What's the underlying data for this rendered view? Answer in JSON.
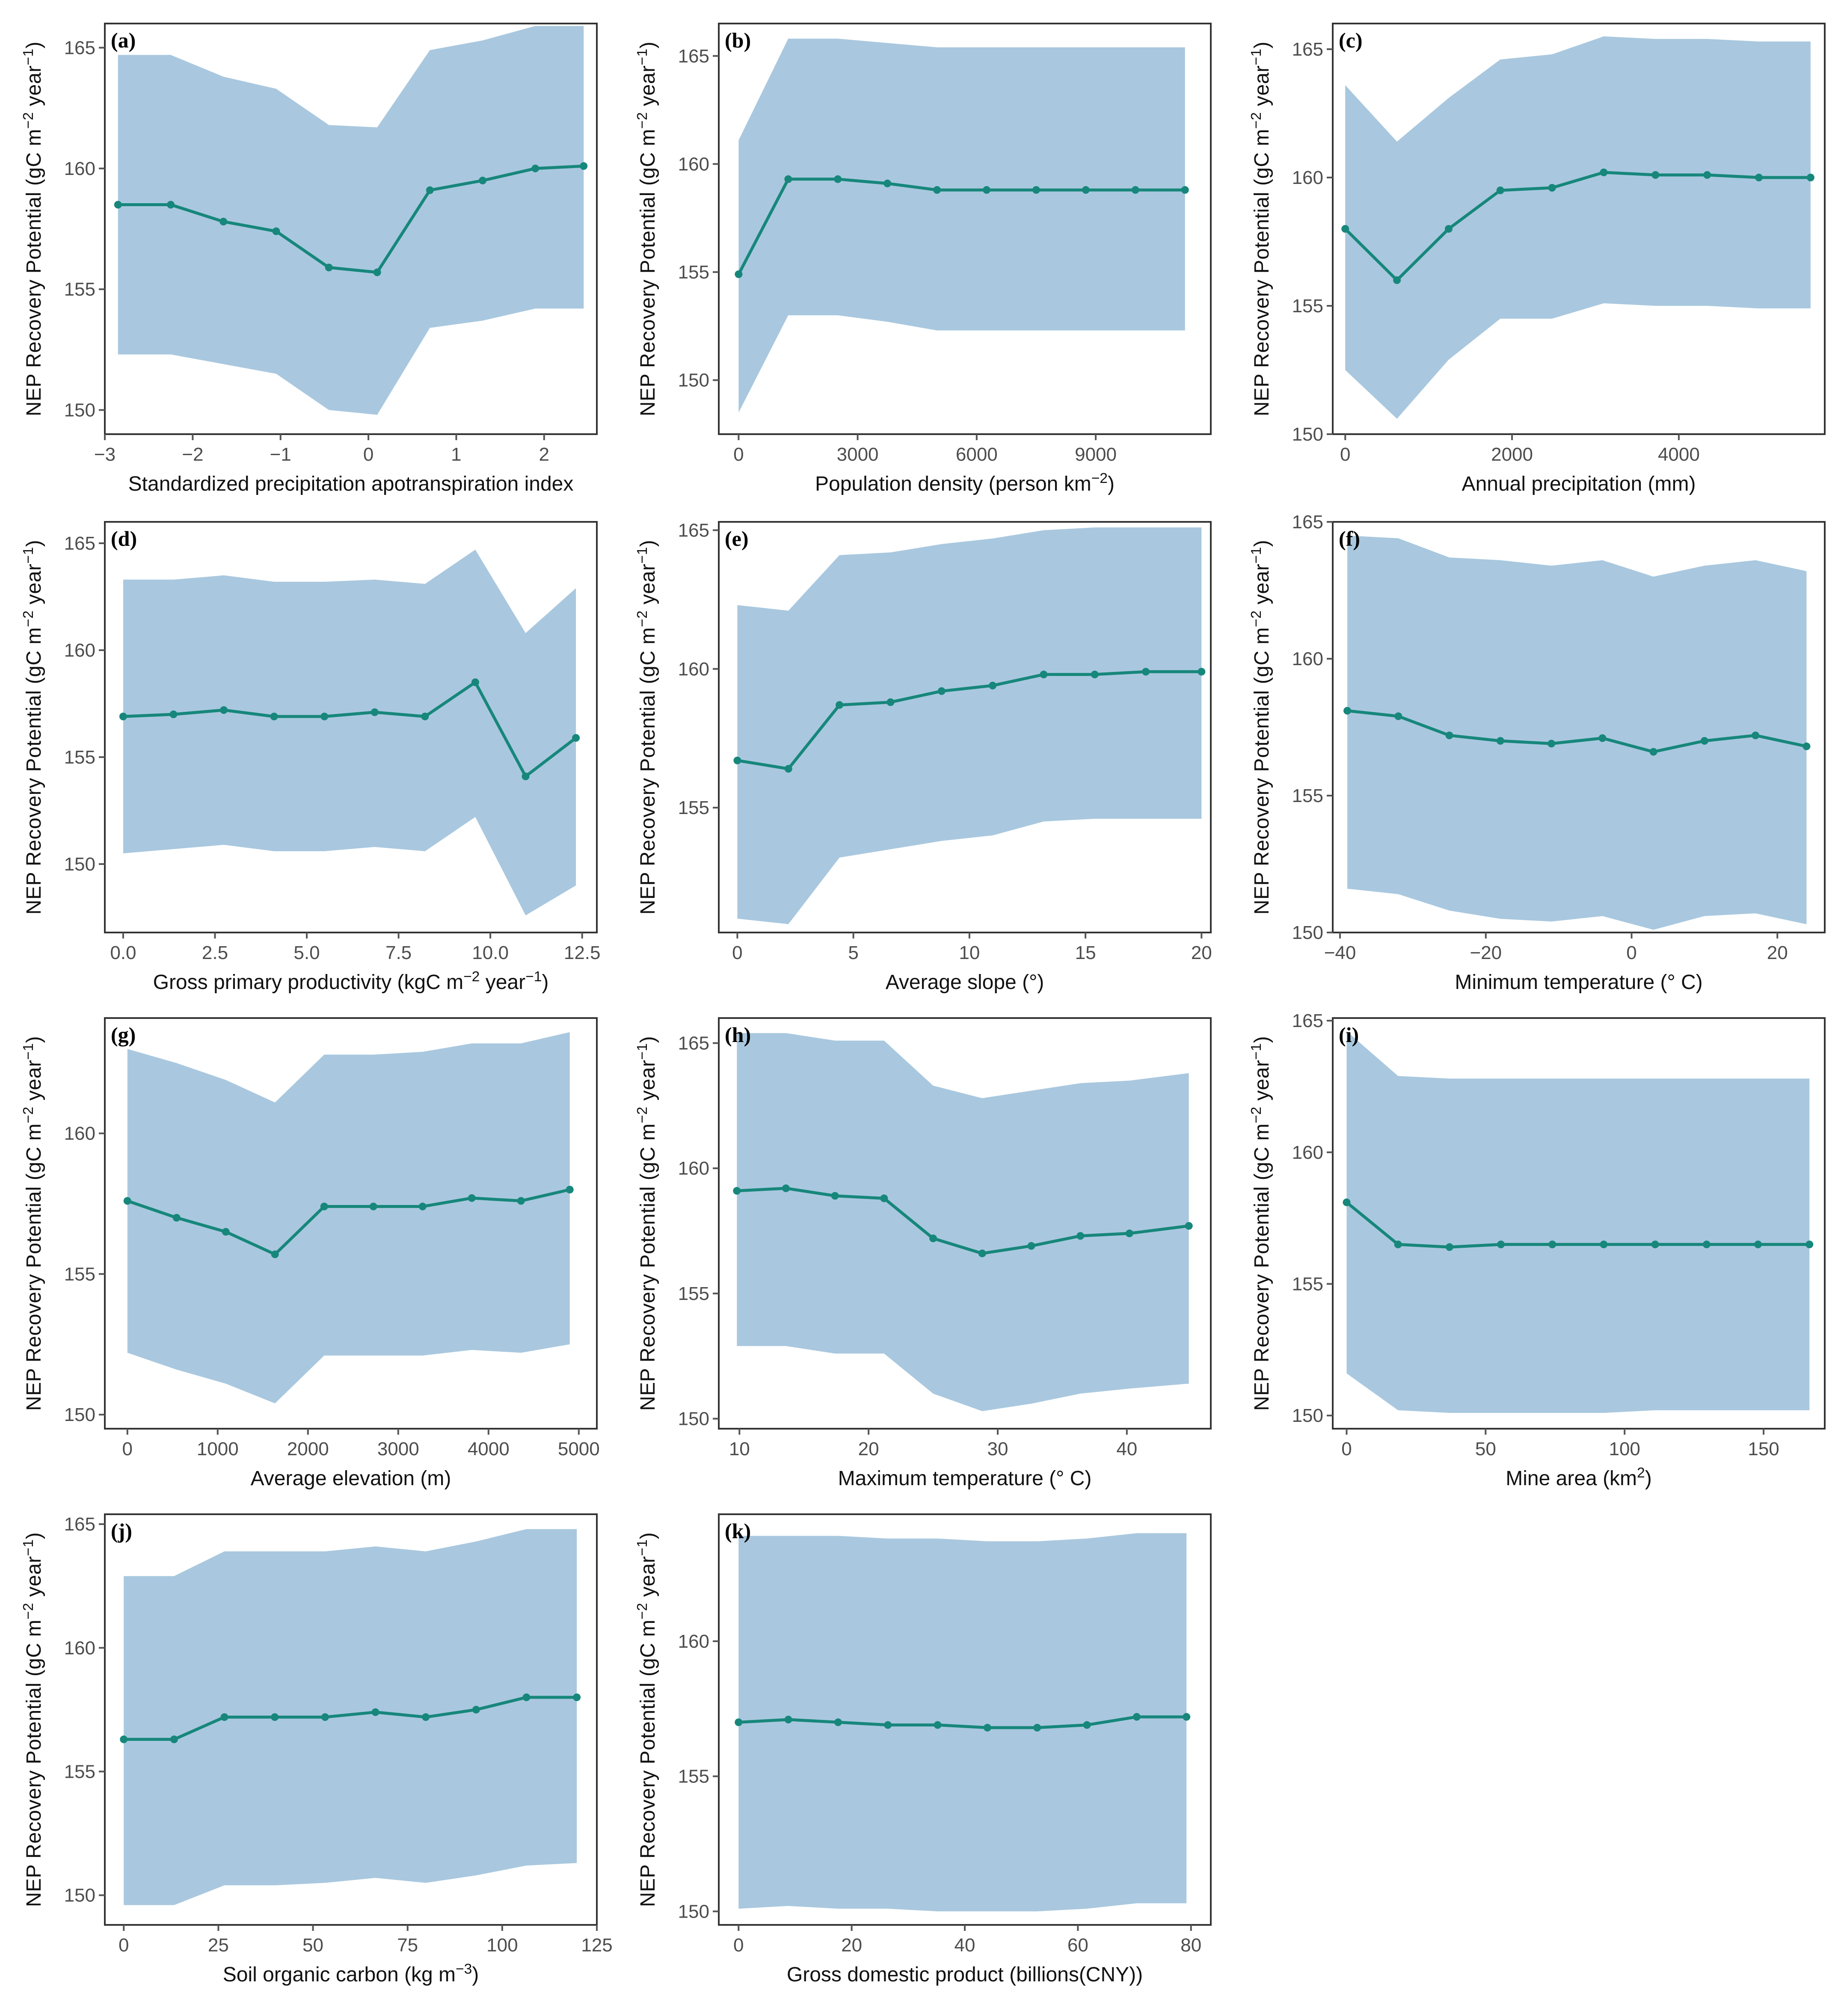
{
  "figure": {
    "y_label": "NEP Recovery Potential (gC m⁻² year⁻¹)"
  },
  "colors": {
    "band": "#a9c8df",
    "line": "#17877b",
    "frame": "#333333"
  },
  "chart_data": [
    {
      "id": "a",
      "type": "area",
      "tag": "(a)",
      "xlabel": "Standardized precipitation apotranspiration index",
      "ylabel": "NEP Recovery Potential (gC m⁻² year⁻¹)",
      "xlim": [
        -3.0,
        2.6
      ],
      "ylim": [
        149.0,
        166.0
      ],
      "xticks": [
        -3,
        -2,
        -1,
        0,
        1,
        2
      ],
      "xtick_labels": [
        "−3",
        "−2",
        "−1",
        "0",
        "1",
        "2"
      ],
      "yticks": [
        150,
        155,
        160,
        165
      ],
      "ytick_labels": [
        "150",
        "155",
        "160",
        "165"
      ],
      "x": [
        -2.85,
        -2.25,
        -1.65,
        -1.05,
        -0.45,
        0.1,
        0.7,
        1.3,
        1.9,
        2.45
      ],
      "y": [
        158.5,
        158.5,
        157.8,
        157.4,
        155.9,
        155.7,
        159.1,
        159.5,
        160.0,
        160.1
      ],
      "upper": [
        164.7,
        164.7,
        163.8,
        163.3,
        161.8,
        161.7,
        164.9,
        165.3,
        165.9,
        165.9
      ],
      "lower": [
        152.3,
        152.3,
        151.9,
        151.5,
        150.0,
        149.8,
        153.4,
        153.7,
        154.2,
        154.2
      ]
    },
    {
      "id": "b",
      "type": "area",
      "tag": "(b)",
      "xlabel": "Population density (person km⁻²)",
      "ylabel": "NEP Recovery Potential (gC m⁻² year⁻¹)",
      "xlim": [
        -500,
        11900
      ],
      "ylim": [
        147.5,
        166.5
      ],
      "xticks": [
        0,
        3000,
        6000,
        9000
      ],
      "xtick_labels": [
        "0",
        "3000",
        "6000",
        "9000"
      ],
      "yticks": [
        150,
        155,
        160,
        165
      ],
      "ytick_labels": [
        "150",
        "155",
        "160",
        "165"
      ],
      "x": [
        0,
        1250,
        2500,
        3750,
        5000,
        6250,
        7500,
        8750,
        10000,
        11250
      ],
      "y": [
        154.9,
        159.3,
        159.3,
        159.1,
        158.8,
        158.8,
        158.8,
        158.8,
        158.8,
        158.8
      ],
      "upper": [
        161.1,
        165.8,
        165.8,
        165.6,
        165.4,
        165.4,
        165.4,
        165.4,
        165.4,
        165.4
      ],
      "lower": [
        148.5,
        153.0,
        153.0,
        152.7,
        152.3,
        152.3,
        152.3,
        152.3,
        152.3,
        152.3
      ]
    },
    {
      "id": "c",
      "type": "area",
      "tag": "(c)",
      "xlabel": "Annual precipitation (mm)",
      "ylabel": "NEP Recovery Potential (gC m⁻² year⁻¹)",
      "xlim": [
        -150,
        5750
      ],
      "ylim": [
        150.0,
        166.0
      ],
      "xticks": [
        0,
        2000,
        4000
      ],
      "xtick_labels": [
        "0",
        "2000",
        "4000"
      ],
      "yticks": [
        150,
        155,
        160,
        165
      ],
      "ytick_labels": [
        "150",
        "155",
        "160",
        "165"
      ],
      "x": [
        0,
        620,
        1240,
        1860,
        2480,
        3100,
        3720,
        4340,
        4960,
        5580
      ],
      "y": [
        158.0,
        156.0,
        158.0,
        159.5,
        159.6,
        160.2,
        160.1,
        160.1,
        160.0,
        160.0
      ],
      "upper": [
        163.6,
        161.4,
        163.1,
        164.6,
        164.8,
        165.5,
        165.4,
        165.4,
        165.3,
        165.3
      ],
      "lower": [
        152.5,
        150.6,
        152.9,
        154.5,
        154.5,
        155.1,
        155.0,
        155.0,
        154.9,
        154.9
      ]
    },
    {
      "id": "d",
      "type": "area",
      "tag": "(d)",
      "xlabel": "Gross primary productivity (kgC m⁻² year⁻¹)",
      "ylabel": "NEP Recovery Potential (gC m⁻² year⁻¹)",
      "xlim": [
        -0.5,
        12.9
      ],
      "ylim": [
        146.8,
        166.0
      ],
      "xticks": [
        0.0,
        2.5,
        5.0,
        7.5,
        10.0,
        12.5
      ],
      "xtick_labels": [
        "0.0",
        "2.5",
        "5.0",
        "7.5",
        "10.0",
        "12.5"
      ],
      "yticks": [
        150,
        155,
        160,
        165
      ],
      "ytick_labels": [
        "150",
        "155",
        "160",
        "165"
      ],
      "x": [
        0.0,
        1.37,
        2.74,
        4.11,
        5.48,
        6.85,
        8.22,
        9.59,
        10.96,
        12.33
      ],
      "y": [
        156.9,
        157.0,
        157.2,
        156.9,
        156.9,
        157.1,
        156.9,
        158.5,
        154.1,
        155.9
      ],
      "upper": [
        163.3,
        163.3,
        163.5,
        163.2,
        163.2,
        163.3,
        163.1,
        164.7,
        160.8,
        162.9
      ],
      "lower": [
        150.5,
        150.7,
        150.9,
        150.6,
        150.6,
        150.8,
        150.6,
        152.2,
        147.6,
        149.0
      ]
    },
    {
      "id": "e",
      "type": "area",
      "tag": "(e)",
      "xlabel": "Average slope (°)",
      "ylabel": "NEP Recovery Potential (gC m⁻² year⁻¹)",
      "xlim": [
        -0.8,
        20.4
      ],
      "ylim": [
        150.5,
        165.3
      ],
      "xticks": [
        0,
        5,
        10,
        15,
        20
      ],
      "xtick_labels": [
        "0",
        "5",
        "10",
        "15",
        "20"
      ],
      "yticks": [
        155,
        160,
        165
      ],
      "ytick_labels": [
        "155",
        "160",
        "165"
      ],
      "x": [
        0.0,
        2.2,
        4.4,
        6.6,
        8.8,
        11.0,
        13.2,
        15.4,
        17.6,
        20.0
      ],
      "y": [
        156.7,
        156.4,
        158.7,
        158.8,
        159.2,
        159.4,
        159.8,
        159.8,
        159.9,
        159.9
      ],
      "upper": [
        162.3,
        162.1,
        164.1,
        164.2,
        164.5,
        164.7,
        165.0,
        165.1,
        165.1,
        165.1
      ],
      "lower": [
        151.0,
        150.8,
        153.2,
        153.5,
        153.8,
        154.0,
        154.5,
        154.6,
        154.6,
        154.6
      ]
    },
    {
      "id": "f",
      "type": "area",
      "tag": "(f)",
      "xlabel": "Minimum temperature (° C)",
      "ylabel": "NEP Recovery Potential (gC m⁻² year⁻¹)",
      "xlim": [
        -41.0,
        26.5
      ],
      "ylim": [
        150.0,
        165.0
      ],
      "xticks": [
        -40,
        -20,
        0,
        20
      ],
      "xtick_labels": [
        "−40",
        "−20",
        "0",
        "20"
      ],
      "yticks": [
        150,
        155,
        160,
        165
      ],
      "ytick_labels": [
        "150",
        "155",
        "160",
        "165"
      ],
      "x": [
        -39.0,
        -32.0,
        -25.0,
        -18.0,
        -11.0,
        -4.0,
        3.0,
        10.0,
        17.0,
        24.0
      ],
      "y": [
        158.1,
        157.9,
        157.2,
        157.0,
        156.9,
        157.1,
        156.6,
        157.0,
        157.2,
        156.8
      ],
      "upper": [
        164.5,
        164.4,
        163.7,
        163.6,
        163.4,
        163.6,
        163.0,
        163.4,
        163.6,
        163.2
      ],
      "lower": [
        151.6,
        151.4,
        150.8,
        150.5,
        150.4,
        150.6,
        150.1,
        150.6,
        150.7,
        150.3
      ]
    },
    {
      "id": "g",
      "type": "area",
      "tag": "(g)",
      "xlabel": "Average elevation (m)",
      "ylabel": "NEP Recovery Potential (gC m⁻² year⁻¹)",
      "xlim": [
        -250,
        5200
      ],
      "ylim": [
        149.5,
        164.1
      ],
      "xticks": [
        0,
        1000,
        2000,
        3000,
        4000,
        5000
      ],
      "xtick_labels": [
        "0",
        "1000",
        "2000",
        "3000",
        "4000",
        "5000"
      ],
      "yticks": [
        150,
        155,
        160
      ],
      "ytick_labels": [
        "150",
        "155",
        "160"
      ],
      "x": [
        0,
        545,
        1090,
        1635,
        2180,
        2725,
        3270,
        3815,
        4360,
        4900
      ],
      "y": [
        157.6,
        157.0,
        156.5,
        155.7,
        157.4,
        157.4,
        157.4,
        157.7,
        157.6,
        158.0
      ],
      "upper": [
        163.0,
        162.5,
        161.9,
        161.1,
        162.8,
        162.8,
        162.9,
        163.2,
        163.2,
        163.6
      ],
      "lower": [
        152.2,
        151.6,
        151.1,
        150.4,
        152.1,
        152.1,
        152.1,
        152.3,
        152.2,
        152.5
      ]
    },
    {
      "id": "h",
      "type": "area",
      "tag": "(h)",
      "xlabel": "Maximum temperature (° C)",
      "ylabel": "NEP Recovery Potential (gC m⁻² year⁻¹)",
      "xlim": [
        8.4,
        46.5
      ],
      "ylim": [
        149.6,
        166.0
      ],
      "xticks": [
        10,
        20,
        30,
        40
      ],
      "xtick_labels": [
        "10",
        "20",
        "30",
        "40"
      ],
      "yticks": [
        150,
        155,
        160,
        165
      ],
      "ytick_labels": [
        "150",
        "155",
        "160",
        "165"
      ],
      "x": [
        9.8,
        13.6,
        17.4,
        21.2,
        25.0,
        28.8,
        32.6,
        36.4,
        40.2,
        44.8
      ],
      "y": [
        159.1,
        159.2,
        158.9,
        158.8,
        157.2,
        156.6,
        156.9,
        157.3,
        157.4,
        157.7
      ],
      "upper": [
        165.4,
        165.4,
        165.1,
        165.1,
        163.3,
        162.8,
        163.1,
        163.4,
        163.5,
        163.8
      ],
      "lower": [
        152.9,
        152.9,
        152.6,
        152.6,
        151.0,
        150.3,
        150.6,
        151.0,
        151.2,
        151.4
      ]
    },
    {
      "id": "i",
      "type": "area",
      "tag": "(i)",
      "xlabel": "Mine area (km²)",
      "ylabel": "NEP Recovery Potential (gC m⁻² year⁻¹)",
      "xlim": [
        -5.0,
        172.0
      ],
      "ylim": [
        149.5,
        165.1
      ],
      "xticks": [
        0,
        50,
        100,
        150
      ],
      "xtick_labels": [
        "0",
        "50",
        "100",
        "150"
      ],
      "yticks": [
        150,
        155,
        160,
        165
      ],
      "ytick_labels": [
        "150",
        "155",
        "160",
        "165"
      ],
      "x": [
        0,
        18.5,
        37,
        55.5,
        74,
        92.5,
        111,
        129.5,
        148,
        166.5
      ],
      "y": [
        158.1,
        156.5,
        156.4,
        156.5,
        156.5,
        156.5,
        156.5,
        156.5,
        156.5,
        156.5
      ],
      "upper": [
        164.6,
        162.9,
        162.8,
        162.8,
        162.8,
        162.8,
        162.8,
        162.8,
        162.8,
        162.8
      ],
      "lower": [
        151.6,
        150.2,
        150.1,
        150.1,
        150.1,
        150.1,
        150.2,
        150.2,
        150.2,
        150.2
      ]
    },
    {
      "id": "j",
      "type": "area",
      "tag": "(j)",
      "xlabel": "Soil organic carbon (kg m⁻³)",
      "ylabel": "NEP Recovery Potential (gC m⁻² year⁻¹)",
      "xlim": [
        -5.0,
        125.0
      ],
      "ylim": [
        148.8,
        165.4
      ],
      "xticks": [
        0,
        25,
        50,
        75,
        100,
        125
      ],
      "xtick_labels": [
        "0",
        "25",
        "50",
        "75",
        "100",
        "125"
      ],
      "yticks": [
        150,
        155,
        160,
        165
      ],
      "ytick_labels": [
        "150",
        "155",
        "160",
        "165"
      ],
      "x": [
        0,
        13.3,
        26.6,
        39.9,
        53.2,
        66.5,
        79.8,
        93.1,
        106.4,
        119.7
      ],
      "y": [
        156.3,
        156.3,
        157.2,
        157.2,
        157.2,
        157.4,
        157.2,
        157.5,
        158.0,
        158.0
      ],
      "upper": [
        162.9,
        162.9,
        163.9,
        163.9,
        163.9,
        164.1,
        163.9,
        164.3,
        164.8,
        164.8
      ],
      "lower": [
        149.6,
        149.6,
        150.4,
        150.4,
        150.5,
        150.7,
        150.5,
        150.8,
        151.2,
        151.3
      ]
    },
    {
      "id": "k",
      "type": "area",
      "tag": "(k)",
      "xlabel": "Gross domestic product (billions(CNY))",
      "ylabel": "NEP Recovery Potential (gC m⁻² year⁻¹)",
      "xlim": [
        -3.5,
        83.5
      ],
      "ylim": [
        149.5,
        164.7
      ],
      "xticks": [
        0,
        20,
        40,
        60,
        80
      ],
      "xtick_labels": [
        "0",
        "20",
        "40",
        "60",
        "80"
      ],
      "yticks": [
        150,
        155,
        160
      ],
      "ytick_labels": [
        "150",
        "155",
        "160"
      ],
      "x": [
        0,
        8.8,
        17.6,
        26.4,
        35.2,
        44.0,
        52.8,
        61.6,
        70.4,
        79.2
      ],
      "y": [
        157.0,
        157.1,
        157.0,
        156.9,
        156.9,
        156.8,
        156.8,
        156.9,
        157.2,
        157.2
      ],
      "upper": [
        163.9,
        163.9,
        163.9,
        163.8,
        163.8,
        163.7,
        163.7,
        163.8,
        164.0,
        164.0
      ],
      "lower": [
        150.1,
        150.2,
        150.1,
        150.1,
        150.0,
        150.0,
        150.0,
        150.1,
        150.3,
        150.3
      ]
    }
  ]
}
